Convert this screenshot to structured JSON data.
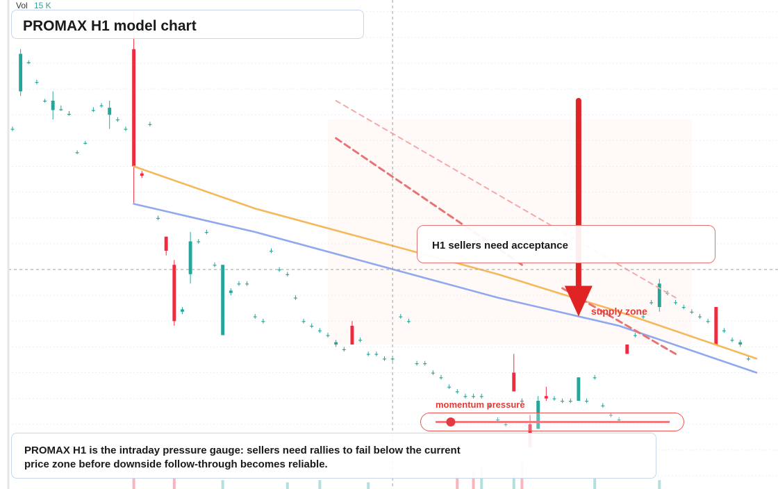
{
  "header": {
    "vol_label": "Vol",
    "vol_value": "15 K"
  },
  "title": "PROMAX H1 model chart",
  "callout": {
    "text": "H1 sellers need acceptance"
  },
  "labels": {
    "supply": "supply zone",
    "momentum": "momentum pressure"
  },
  "note": {
    "text": "PROMAX H1 is the intraday pressure gauge: sellers need rallies to fail below the current price zone before downside follow-through becomes reliable."
  },
  "colors": {
    "up": "#26a69a",
    "down": "#ef2b3f",
    "orange_ma": "#f5b85a",
    "blue_ma": "#8fa8ef",
    "accent_red": "#e02424",
    "crosshair": "#9e9e9e",
    "grid": "#e9edf4"
  },
  "gauge": {
    "level": 0.065
  },
  "chart_data": {
    "type": "candlestick",
    "title": "PROMAX H1 model chart",
    "xlabel": "",
    "ylabel": "",
    "x_range": [
      0,
      92
    ],
    "ylim": [
      0,
      100
    ],
    "grid": true,
    "legend": "none",
    "candles": [
      [
        0,
        74,
        74,
        74.5,
        73.5
      ],
      [
        1,
        82,
        90,
        91,
        81
      ],
      [
        2,
        88,
        88.2,
        88.6,
        87.8
      ],
      [
        3,
        84,
        84,
        84.5,
        83.5
      ],
      [
        4,
        80,
        80,
        80.4,
        79.6
      ],
      [
        5,
        78,
        80,
        82,
        76
      ],
      [
        6,
        78,
        78.2,
        79,
        77.8
      ],
      [
        7,
        77,
        77.2,
        77.8,
        76.8
      ],
      [
        8,
        69,
        69,
        69.4,
        68.6
      ],
      [
        9,
        71,
        71,
        71.4,
        70.6
      ],
      [
        10,
        78,
        78,
        78.6,
        77.6
      ],
      [
        11,
        79,
        79,
        79.5,
        78.5
      ],
      [
        12,
        77,
        78.5,
        80,
        74
      ],
      [
        13,
        76,
        76,
        76.5,
        75.5
      ],
      [
        14,
        74,
        74,
        74.5,
        73.5
      ],
      [
        15,
        91,
        66,
        99,
        58
      ],
      [
        16,
        64.5,
        64,
        65,
        63.5
      ],
      [
        17,
        75,
        75,
        75.5,
        74.5
      ],
      [
        18,
        55,
        55,
        55.5,
        54.5
      ],
      [
        19,
        51,
        48,
        51,
        47
      ],
      [
        20,
        45,
        33,
        46,
        32
      ],
      [
        21,
        35,
        35.5,
        36,
        34.5
      ],
      [
        22,
        43,
        50,
        52,
        41
      ],
      [
        23,
        50,
        50,
        50.5,
        49.5
      ],
      [
        24,
        52,
        52,
        52.5,
        51.5
      ],
      [
        25,
        45,
        45,
        45.5,
        44.5
      ],
      [
        26,
        30,
        45,
        45,
        30
      ],
      [
        27,
        39,
        39.5,
        40,
        38.5
      ],
      [
        28,
        41,
        41,
        41.5,
        40.5
      ],
      [
        29,
        41,
        41,
        41.5,
        40.5
      ],
      [
        30,
        34,
        34,
        34.5,
        33.5
      ],
      [
        31,
        33,
        33,
        33.5,
        32.5
      ],
      [
        32,
        48,
        48,
        48.5,
        47.5
      ],
      [
        33,
        44,
        44,
        44.5,
        43.5
      ],
      [
        34,
        43,
        43,
        43.5,
        42.5
      ],
      [
        35,
        38,
        38,
        38.5,
        37.5
      ],
      [
        36,
        33,
        33,
        33.5,
        32.5
      ],
      [
        37,
        32,
        32,
        32.5,
        31.5
      ],
      [
        38,
        31,
        31,
        31.5,
        30.5
      ],
      [
        39,
        30,
        30,
        30.5,
        29.5
      ],
      [
        40,
        28,
        28.5,
        29,
        27.5
      ],
      [
        41,
        27,
        27,
        27.5,
        26.5
      ],
      [
        42,
        32,
        28,
        33,
        28
      ],
      [
        43,
        29,
        29,
        29.5,
        28.5
      ],
      [
        44,
        26,
        26,
        26.5,
        25.5
      ],
      [
        45,
        26,
        26,
        26.5,
        25.5
      ],
      [
        46,
        25,
        25,
        25.5,
        24.5
      ],
      [
        47,
        25,
        25,
        25.5,
        24.5
      ],
      [
        48,
        34,
        34,
        34.5,
        33.5
      ],
      [
        49,
        33,
        33,
        33.5,
        32.5
      ],
      [
        50,
        24,
        24,
        24.5,
        23.5
      ],
      [
        51,
        24,
        24,
        24.5,
        23.5
      ],
      [
        52,
        22,
        22,
        22.5,
        21.5
      ],
      [
        53,
        21,
        21,
        21.5,
        20.5
      ],
      [
        54,
        19,
        19,
        19.5,
        18.5
      ],
      [
        55,
        18,
        18,
        18.5,
        17.5
      ],
      [
        56,
        17,
        17,
        17.5,
        16.5
      ],
      [
        57,
        17,
        17,
        17.5,
        16.5
      ],
      [
        58,
        17,
        17,
        17.5,
        16.5
      ],
      [
        59,
        15,
        15,
        15.5,
        14.5
      ],
      [
        60,
        12,
        12,
        12.5,
        11.5
      ],
      [
        61,
        11,
        11,
        11.5,
        10.5
      ],
      [
        62,
        22,
        18,
        26,
        18
      ],
      [
        63,
        16,
        16,
        16.5,
        15.5
      ],
      [
        64,
        11,
        6,
        13,
        6
      ],
      [
        65,
        10,
        16,
        17,
        10
      ],
      [
        66,
        17,
        16.5,
        19,
        16
      ],
      [
        67,
        16.5,
        16.5,
        17,
        16
      ],
      [
        68,
        16,
        16,
        16.5,
        15.5
      ],
      [
        69,
        16,
        16,
        16.5,
        15.5
      ],
      [
        70,
        16,
        21,
        21,
        16
      ],
      [
        71,
        16,
        16,
        16.5,
        15.5
      ],
      [
        72,
        21,
        21,
        21.5,
        20.5
      ],
      [
        73,
        15,
        15,
        15.5,
        14.5
      ],
      [
        74,
        13,
        13,
        13.5,
        12.5
      ],
      [
        75,
        12,
        12,
        12.5,
        11.5
      ],
      [
        76,
        28,
        26,
        28,
        26
      ],
      [
        77,
        30,
        30,
        30.5,
        29.5
      ],
      [
        78,
        34,
        34,
        34.5,
        33.5
      ],
      [
        79,
        37,
        37,
        37.5,
        36.5
      ],
      [
        80,
        36,
        41,
        42,
        35
      ],
      [
        81,
        39,
        39,
        39.5,
        38.5
      ],
      [
        82,
        37,
        37,
        37.5,
        36.5
      ],
      [
        83,
        36,
        36,
        36.5,
        35.5
      ],
      [
        84,
        35,
        35,
        35.5,
        34.5
      ],
      [
        85,
        34,
        34,
        34.5,
        33.5
      ],
      [
        86,
        33,
        33,
        33.5,
        32.5
      ],
      [
        87,
        36,
        28,
        36,
        28
      ],
      [
        88,
        31,
        31,
        31.5,
        30.5
      ],
      [
        89,
        29,
        29,
        29.5,
        28.5
      ],
      [
        90,
        28,
        28.5,
        29,
        27.5
      ],
      [
        91,
        25,
        25,
        25.5,
        24.5
      ]
    ],
    "volume": [
      [
        15,
        7,
        "down"
      ],
      [
        20,
        5,
        "down"
      ],
      [
        26,
        4,
        "up"
      ],
      [
        34,
        3,
        "up"
      ],
      [
        38,
        4,
        "up"
      ],
      [
        44,
        3,
        "up"
      ],
      [
        55,
        6,
        "down"
      ],
      [
        57,
        8,
        "down"
      ],
      [
        58,
        10,
        "up"
      ],
      [
        62,
        6,
        "up"
      ],
      [
        63,
        12,
        "down"
      ],
      [
        72,
        5,
        "up"
      ],
      [
        80,
        4,
        "up"
      ]
    ],
    "moving_averages": [
      {
        "color": "orange",
        "points": [
          [
            15,
            66
          ],
          [
            30,
            57
          ],
          [
            45,
            50
          ],
          [
            60,
            43
          ],
          [
            75,
            35
          ],
          [
            92,
            25
          ]
        ]
      },
      {
        "color": "blue",
        "points": [
          [
            15,
            58
          ],
          [
            30,
            52
          ],
          [
            45,
            45
          ],
          [
            60,
            38
          ],
          [
            75,
            32
          ],
          [
            92,
            22
          ]
        ]
      }
    ],
    "trend_lines": [
      {
        "points": [
          [
            40,
            72
          ],
          [
            63,
            45
          ]
        ],
        "style": "dashed-thick"
      },
      {
        "points": [
          [
            68,
            40
          ],
          [
            82,
            26
          ]
        ],
        "style": "dashed-thick"
      },
      {
        "points": [
          [
            40,
            80
          ],
          [
            82,
            38
          ]
        ],
        "style": "dashed-light"
      }
    ],
    "crosshair": {
      "x": 47,
      "y": 44
    },
    "zones": [
      {
        "x": [
          39,
          84
        ],
        "y": [
          28,
          76
        ],
        "label": "supply zone"
      }
    ],
    "arrow": {
      "x": 70,
      "from": 80,
      "to": 34
    }
  }
}
